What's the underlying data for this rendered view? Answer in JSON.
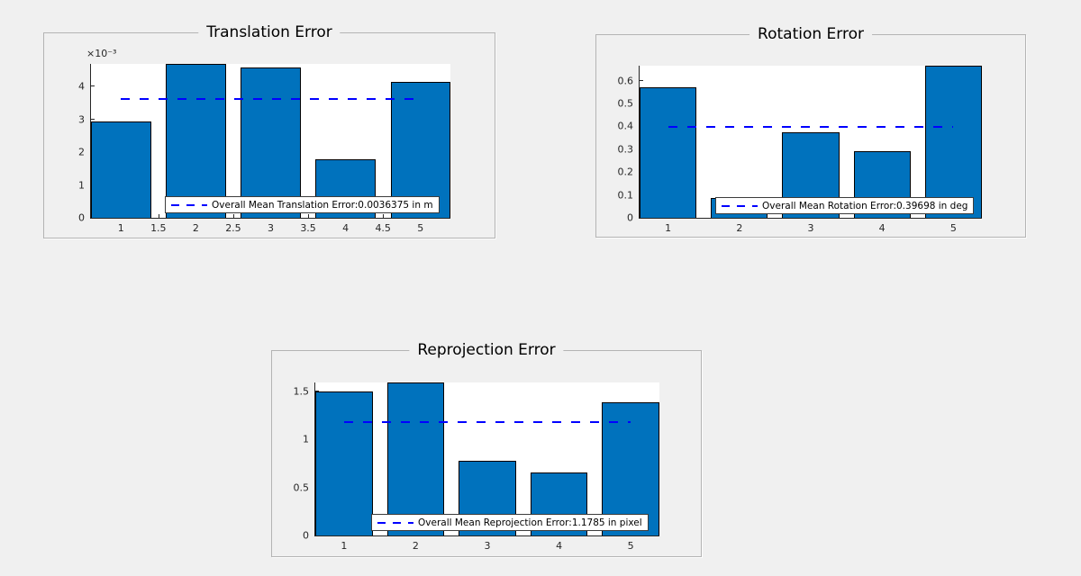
{
  "colors": {
    "bar_fill": "#0072BD",
    "bar_edge": "#000000",
    "mean_line": "#0000FF",
    "axis": "#262626",
    "panel_bg": "#F0F0F0",
    "plot_bg": "#FFFFFF",
    "panel_border": "#B4B4B4"
  },
  "chart_data": [
    {
      "type": "bar",
      "title": "Translation Error",
      "categories": [
        1,
        2,
        3,
        4,
        5
      ],
      "values": [
        0.00295,
        0.0047,
        0.0046,
        0.0018,
        0.00414
      ],
      "bar_width": 0.8,
      "xlim": [
        0.6,
        5.4
      ],
      "ylim": [
        0,
        0.0047
      ],
      "grid": false,
      "y_exponent": "×10⁻³",
      "yticks": [
        {
          "v": 0,
          "label": "0"
        },
        {
          "v": 0.001,
          "label": "1"
        },
        {
          "v": 0.002,
          "label": "2"
        },
        {
          "v": 0.003,
          "label": "3"
        },
        {
          "v": 0.004,
          "label": "4"
        }
      ],
      "xticks": [
        {
          "v": 1,
          "label": "1"
        },
        {
          "v": 1.5,
          "label": "1.5"
        },
        {
          "v": 2,
          "label": "2"
        },
        {
          "v": 2.5,
          "label": "2.5"
        },
        {
          "v": 3,
          "label": "3"
        },
        {
          "v": 3.5,
          "label": "3.5"
        },
        {
          "v": 4,
          "label": "4"
        },
        {
          "v": 4.5,
          "label": "4.5"
        },
        {
          "v": 5,
          "label": "5"
        }
      ],
      "mean": 0.0036375,
      "mean_span_x": [
        1,
        5
      ],
      "legend": "Overall Mean Translation Error:0.0036375 in m",
      "legend_position": "inside bottom"
    },
    {
      "type": "bar",
      "title": "Rotation Error",
      "categories": [
        1,
        2,
        3,
        4,
        5
      ],
      "values": [
        0.57,
        0.086,
        0.375,
        0.29,
        0.664
      ],
      "bar_width": 0.8,
      "xlim": [
        0.6,
        5.4
      ],
      "ylim": [
        0,
        0.665
      ],
      "grid": false,
      "y_exponent": "",
      "yticks": [
        {
          "v": 0,
          "label": "0"
        },
        {
          "v": 0.1,
          "label": "0.1"
        },
        {
          "v": 0.2,
          "label": "0.2"
        },
        {
          "v": 0.3,
          "label": "0.3"
        },
        {
          "v": 0.4,
          "label": "0.4"
        },
        {
          "v": 0.5,
          "label": "0.5"
        },
        {
          "v": 0.6,
          "label": "0.6"
        }
      ],
      "xticks": [
        {
          "v": 1,
          "label": "1"
        },
        {
          "v": 2,
          "label": "2"
        },
        {
          "v": 3,
          "label": "3"
        },
        {
          "v": 4,
          "label": "4"
        },
        {
          "v": 5,
          "label": "5"
        }
      ],
      "mean": 0.39698,
      "mean_span_x": [
        1,
        5
      ],
      "legend": "Overall Mean Rotation Error:0.39698 in deg",
      "legend_position": "inside bottom"
    },
    {
      "type": "bar",
      "title": "Reprojection Error",
      "categories": [
        1,
        2,
        3,
        4,
        5
      ],
      "values": [
        1.5,
        1.585,
        0.775,
        0.655,
        1.38
      ],
      "bar_width": 0.8,
      "xlim": [
        0.6,
        5.4
      ],
      "ylim": [
        0,
        1.589
      ],
      "grid": false,
      "y_exponent": "",
      "yticks": [
        {
          "v": 0,
          "label": "0"
        },
        {
          "v": 0.5,
          "label": "0.5"
        },
        {
          "v": 1,
          "label": "1"
        },
        {
          "v": 1.5,
          "label": "1.5"
        }
      ],
      "xticks": [
        {
          "v": 1,
          "label": "1"
        },
        {
          "v": 2,
          "label": "2"
        },
        {
          "v": 3,
          "label": "3"
        },
        {
          "v": 4,
          "label": "4"
        },
        {
          "v": 5,
          "label": "5"
        }
      ],
      "mean": 1.1785,
      "mean_span_x": [
        1,
        5
      ],
      "legend": "Overall Mean Reprojection Error:1.1785 in pixel",
      "legend_position": "inside bottom"
    }
  ]
}
